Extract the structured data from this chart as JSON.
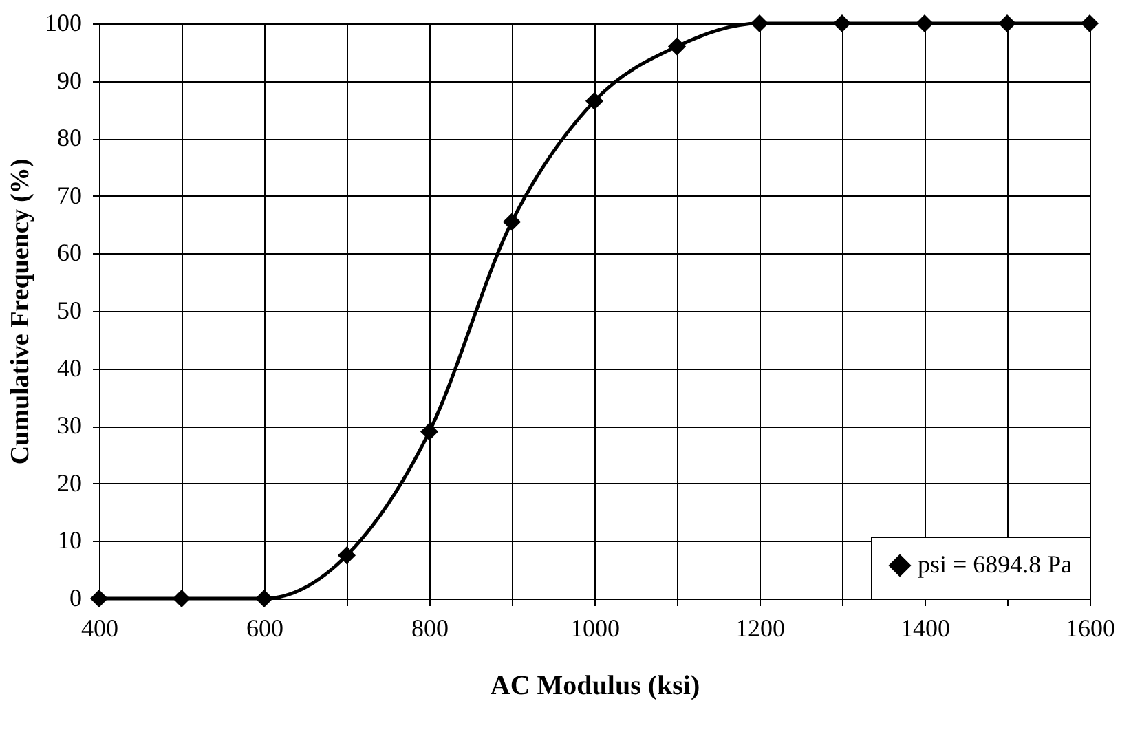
{
  "chart_data": {
    "type": "line",
    "xlabel": "AC Modulus (ksi)",
    "ylabel": "Cumulative Frequency (%)",
    "x": [
      400,
      500,
      600,
      700,
      800,
      900,
      1000,
      1100,
      1200,
      1300,
      1400,
      1500,
      1600
    ],
    "series": [
      {
        "name": "psi = 6894.8 Pa",
        "color": "#000000",
        "values": [
          0,
          0,
          0,
          7.5,
          29,
          65.5,
          86.5,
          96,
          100,
          100,
          100,
          100,
          100
        ]
      }
    ],
    "xlim": [
      400,
      1600
    ],
    "xticks": [
      400,
      {
        "value": 500,
        "label": null
      },
      600,
      {
        "value": 700,
        "label": null
      },
      800,
      {
        "value": 900,
        "label": null
      },
      1000,
      {
        "value": 1100,
        "label": null
      },
      1200,
      {
        "value": 1300,
        "label": null
      },
      1400,
      {
        "value": 1500,
        "label": null
      },
      1600
    ],
    "ylim": [
      0,
      100
    ],
    "yticks": [
      0,
      10,
      20,
      30,
      40,
      50,
      60,
      70,
      80,
      90,
      100
    ],
    "grid": true,
    "legend": "bottom right",
    "marker": "diamond",
    "line_style": "solid"
  }
}
